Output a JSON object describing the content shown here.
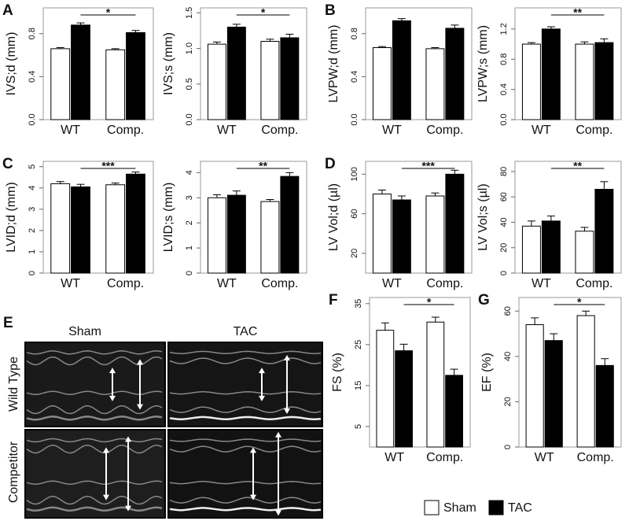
{
  "chart_data": [
    {
      "type": "bar",
      "panel": "A",
      "ylabel": "IVS;d (mm)",
      "categories": [
        "WT",
        "Comp."
      ],
      "series": [
        {
          "name": "Sham",
          "color": "#ffffff",
          "values": [
            0.66,
            0.65
          ],
          "errors": [
            0.01,
            0.01
          ]
        },
        {
          "name": "TAC",
          "color": "#000000",
          "values": [
            0.88,
            0.81
          ],
          "errors": [
            0.02,
            0.02
          ]
        }
      ],
      "ylim": [
        0,
        1.04
      ],
      "yticks": [
        {
          "value": 0,
          "label": "0.0"
        },
        {
          "value": 0.4,
          "label": "0.4"
        },
        {
          "value": 0.8,
          "label": "0.8"
        }
      ],
      "significance": "*"
    },
    {
      "type": "bar",
      "ylabel": "IVS;s (mm)",
      "categories": [
        "WT",
        "Comp."
      ],
      "series": [
        {
          "name": "Sham",
          "color": "#ffffff",
          "values": [
            1.06,
            1.1
          ],
          "errors": [
            0.03,
            0.03
          ]
        },
        {
          "name": "TAC",
          "color": "#000000",
          "values": [
            1.3,
            1.15
          ],
          "errors": [
            0.04,
            0.05
          ]
        }
      ],
      "ylim": [
        0,
        1.57
      ],
      "yticks": [
        {
          "value": 0,
          "label": "0.0"
        },
        {
          "value": 0.5,
          "label": "0.5"
        },
        {
          "value": 1,
          "label": "1.0"
        },
        {
          "value": 1.5,
          "label": "1.5"
        }
      ],
      "significance": "*"
    },
    {
      "type": "bar",
      "panel": "B",
      "ylabel": "LVPW;d (mm)",
      "categories": [
        "WT",
        "Comp."
      ],
      "series": [
        {
          "name": "Sham",
          "color": "#ffffff",
          "values": [
            0.67,
            0.66
          ],
          "errors": [
            0.01,
            0.01
          ]
        },
        {
          "name": "TAC",
          "color": "#000000",
          "values": [
            0.92,
            0.85
          ],
          "errors": [
            0.02,
            0.03
          ]
        }
      ],
      "ylim": [
        0,
        1.04
      ],
      "yticks": [
        {
          "value": 0,
          "label": "0.0"
        },
        {
          "value": 0.4,
          "label": "0.4"
        },
        {
          "value": 0.8,
          "label": "0.8"
        }
      ]
    },
    {
      "type": "bar",
      "ylabel": "LVPW;s (mm)",
      "categories": [
        "WT",
        "Comp."
      ],
      "series": [
        {
          "name": "Sham",
          "color": "#ffffff",
          "values": [
            1.0,
            1.0
          ],
          "errors": [
            0.02,
            0.03
          ]
        },
        {
          "name": "TAC",
          "color": "#000000",
          "values": [
            1.2,
            1.02
          ],
          "errors": [
            0.03,
            0.05
          ]
        }
      ],
      "ylim": [
        0,
        1.48
      ],
      "yticks": [
        {
          "value": 0,
          "label": "0.0"
        },
        {
          "value": 0.4,
          "label": "0.4"
        },
        {
          "value": 0.8,
          "label": "0.8"
        },
        {
          "value": 1.2,
          "label": "1.2"
        }
      ],
      "significance": "**"
    },
    {
      "type": "bar",
      "panel": "C",
      "ylabel": "LVID;d (mm)",
      "categories": [
        "WT",
        "Comp."
      ],
      "series": [
        {
          "name": "Sham",
          "color": "#ffffff",
          "values": [
            4.2,
            4.15
          ],
          "errors": [
            0.1,
            0.08
          ]
        },
        {
          "name": "TAC",
          "color": "#000000",
          "values": [
            4.05,
            4.65
          ],
          "errors": [
            0.12,
            0.1
          ]
        }
      ],
      "ylim": [
        0,
        5.25
      ],
      "yticks": [
        0,
        1,
        2,
        3,
        4,
        5
      ],
      "significance": "***"
    },
    {
      "type": "bar",
      "ylabel": "LVID;s (mm)",
      "categories": [
        "WT",
        "Comp."
      ],
      "series": [
        {
          "name": "Sham",
          "color": "#ffffff",
          "values": [
            3.0,
            2.85
          ],
          "errors": [
            0.12,
            0.08
          ]
        },
        {
          "name": "TAC",
          "color": "#000000",
          "values": [
            3.1,
            3.85
          ],
          "errors": [
            0.17,
            0.15
          ]
        }
      ],
      "ylim": [
        0,
        4.45
      ],
      "yticks": [
        0,
        1,
        2,
        3,
        4
      ],
      "significance": "**"
    },
    {
      "type": "bar",
      "panel": "D",
      "ylabel": "LV Vol;d (µl)",
      "categories": [
        "WT",
        "Comp."
      ],
      "series": [
        {
          "name": "Sham",
          "color": "#ffffff",
          "values": [
            80,
            78
          ],
          "errors": [
            4,
            3
          ]
        },
        {
          "name": "TAC",
          "color": "#000000",
          "values": [
            74,
            100
          ],
          "errors": [
            4,
            4
          ]
        }
      ],
      "ylim": [
        0,
        113
      ],
      "yticks": [
        20,
        60,
        100
      ],
      "significance": "***"
    },
    {
      "type": "bar",
      "ylabel": "LV Vol;s (µl)",
      "categories": [
        "WT",
        "Comp."
      ],
      "series": [
        {
          "name": "Sham",
          "color": "#ffffff",
          "values": [
            37,
            33
          ],
          "errors": [
            4,
            3
          ]
        },
        {
          "name": "TAC",
          "color": "#000000",
          "values": [
            41,
            66
          ],
          "errors": [
            4,
            6
          ]
        }
      ],
      "ylim": [
        0,
        88
      ],
      "yticks": [
        0,
        20,
        40,
        60,
        80
      ],
      "significance": "**"
    },
    {
      "type": "bar",
      "panel": "F",
      "ylabel": "FS (%)",
      "categories": [
        "WT",
        "Comp."
      ],
      "series": [
        {
          "name": "Sham",
          "color": "#ffffff",
          "values": [
            28.5,
            30.5
          ],
          "errors": [
            1.8,
            1.2
          ]
        },
        {
          "name": "TAC",
          "color": "#000000",
          "values": [
            23.5,
            17.5
          ],
          "errors": [
            1.6,
            1.5
          ]
        }
      ],
      "ylim": [
        0,
        36.5
      ],
      "yticks": [
        5,
        15,
        25,
        35
      ],
      "significance": "*"
    },
    {
      "type": "bar",
      "panel": "G",
      "ylabel": "EF (%)",
      "categories": [
        "WT",
        "Comp."
      ],
      "series": [
        {
          "name": "Sham",
          "color": "#ffffff",
          "values": [
            54,
            58
          ],
          "errors": [
            3,
            2
          ]
        },
        {
          "name": "TAC",
          "color": "#000000",
          "values": [
            47,
            36
          ],
          "errors": [
            3,
            3
          ]
        }
      ],
      "ylim": [
        0,
        66
      ],
      "yticks": [
        0,
        20,
        40,
        60
      ],
      "significance": "*"
    }
  ],
  "echo_panel": {
    "panel": "E",
    "columns": [
      "Sham",
      "TAC"
    ],
    "rows": [
      "Wild Type",
      "Competitor"
    ]
  }
}
